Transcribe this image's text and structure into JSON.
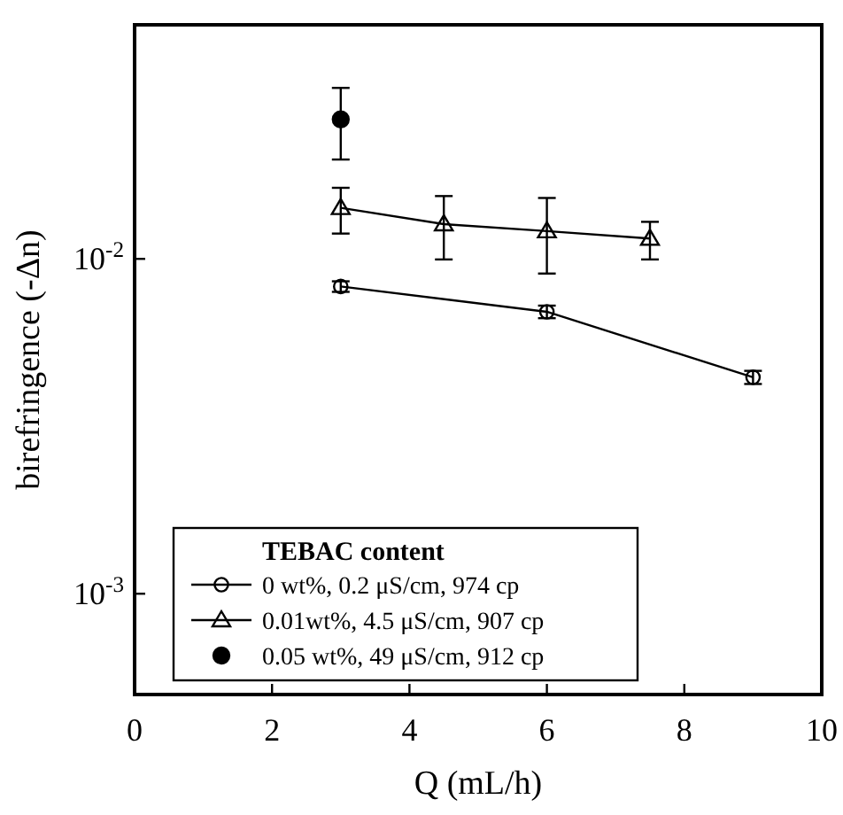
{
  "chart_data": {
    "type": "line",
    "xlabel": "Q (mL/h)",
    "ylabel": "birefringence (-Δn)",
    "legend_title": "TEBAC content",
    "legend": "bottom left",
    "log": "y",
    "grid": false,
    "xlim": [
      0,
      10
    ],
    "xticks": [
      0,
      2,
      4,
      6,
      8,
      10
    ],
    "ylim": [
      0.0005,
      0.05
    ],
    "yticks": [
      {
        "value": 0.01,
        "label": "10$^{-2}$"
      },
      {
        "value": 0.001,
        "label": "10$^{-3}$"
      }
    ],
    "series": [
      {
        "name": "0 wt%, 0.2 μS/cm, 974 cp",
        "marker": "circle",
        "color": "#000000",
        "x": [
          3,
          6,
          9
        ],
        "values": [
          0.00827,
          0.00695,
          0.00443
        ],
        "errors": [
          [
            0.00797,
            0.00857
          ],
          [
            0.00665,
            0.00725
          ],
          [
            0.00423,
            0.00463
          ]
        ]
      },
      {
        "name": "0.01wt%, 4.5 μS/cm, 907 cp",
        "marker": "triangle",
        "color": "#000000",
        "x": [
          3,
          4.5,
          6,
          7.5
        ],
        "values": [
          0.0142,
          0.0127,
          0.0121,
          0.0115
        ],
        "errors": [
          [
            0.0119,
            0.0163
          ],
          [
            0.00996,
            0.0154
          ],
          [
            0.00904,
            0.0152
          ],
          [
            0.00996,
            0.0129
          ]
        ]
      },
      {
        "name": "0.05 wt%, 49 μS/cm, 912 cp",
        "type": "scatter",
        "marker": "circle",
        "color": "#000000",
        "x": [
          3
        ],
        "values": [
          0.0261
        ],
        "errors": [
          [
            0.0198,
            0.0324
          ]
        ]
      }
    ]
  }
}
